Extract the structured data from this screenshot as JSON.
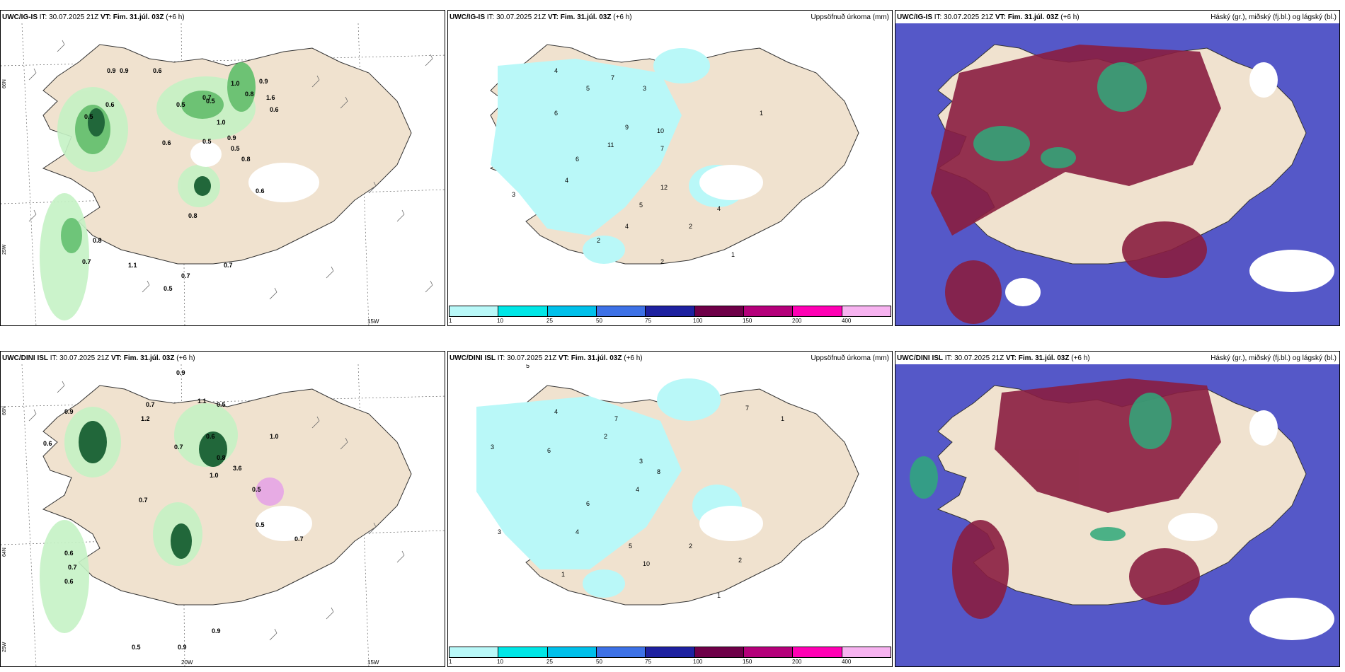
{
  "panels": {
    "p1": {
      "model": "UWC/IG-IS",
      "it_label": "IT:",
      "it": "30.07.2025 21Z",
      "vt_label": "VT:",
      "vt": "Fim. 31.júl. 03Z",
      "lead": "(+6 h)",
      "right": ""
    },
    "p2": {
      "model": "UWC/IG-IS",
      "it_label": "IT:",
      "it": "30.07.2025 21Z",
      "vt_label": "VT:",
      "vt": "Fim. 31.júl. 03Z",
      "lead": "(+6 h)",
      "right": "Uppsöfnuð úrkoma (mm)"
    },
    "p3": {
      "model": "UWC/IG-IS",
      "it_label": "IT:",
      "it": "30.07.2025 21Z",
      "vt_label": "VT:",
      "vt": "Fim. 31.júl. 03Z",
      "lead": "(+6 h)",
      "right": "Háský (gr.), miðský (fj.bl.) og lágský (bl.)"
    },
    "p4": {
      "model": "UWC/DINI ISL",
      "it_label": "IT:",
      "it": "30.07.2025 21Z",
      "vt_label": "VT:",
      "vt": "Fim. 31.júl. 03Z",
      "lead": "(+6 h)",
      "right": ""
    },
    "p5": {
      "model": "UWC/DINI ISL",
      "it_label": "IT:",
      "it": "30.07.2025 21Z",
      "vt_label": "VT:",
      "vt": "Fim. 31.júl. 03Z",
      "lead": "(+6 h)",
      "right": "Uppsöfnuð úrkoma (mm)"
    },
    "p6": {
      "model": "UWC/DINI ISL",
      "it_label": "IT:",
      "it": "30.07.2025 21Z",
      "vt_label": "VT:",
      "vt": "Fim. 31.júl. 03Z",
      "lead": "(+6 h)",
      "right": "Háský (gr.), miðský (fj.bl.) og lágský (bl.)"
    }
  },
  "colorbar": {
    "colors": [
      "#b9f8f8",
      "#00e6e6",
      "#00c0ea",
      "#3d71e6",
      "#1e21a0",
      "#6e0048",
      "#b4007a",
      "#ff00b4",
      "#f7b3f0"
    ],
    "labels": [
      "1",
      "10",
      "25",
      "50",
      "75",
      "100",
      "150",
      "200",
      "400"
    ]
  },
  "axis": {
    "lat_n66": "66N",
    "lat_n64": "64N",
    "lon_25w": "25W",
    "lon_20w": "20W",
    "lon_15w": "15W"
  },
  "map_colors": {
    "land": "#f0e2cf",
    "precip_light": "#b9f8f8",
    "green_light": "#c5f2c5",
    "green_mid": "#5fbf6b",
    "green_dark": "#0b5a2a",
    "high_cloud": "#5c2a6a",
    "mid_cloud": "#8a1e40",
    "low_cloud": "#5558c8"
  },
  "p1_values": [
    "0.9",
    "0.9",
    "0.6",
    "0.9",
    "0.5",
    "0.6",
    "0.5",
    "0.7",
    "0.5",
    "1.0",
    "0.8",
    "1.6",
    "0.6",
    "0.9",
    "1.0",
    "0.5",
    "0.8",
    "0.6",
    "0.8",
    "0.8",
    "0.7",
    "0.6",
    "0.5",
    "0.7",
    "0.5",
    "1.1",
    "0.7"
  ],
  "p4_values": [
    "0.9",
    "0.7",
    "1.1",
    "0.5",
    "0.9",
    "0.6",
    "1.2",
    "0.7",
    "1.0",
    "0.6",
    "0.8",
    "3.6",
    "1.0",
    "0.7",
    "0.6",
    "0.5",
    "0.7",
    "0.6",
    "0.5",
    "0.7",
    "0.9",
    "0.5",
    "0.9"
  ],
  "p2_values": [
    "4",
    "5",
    "7",
    "3",
    "6",
    "11",
    "4",
    "7",
    "9",
    "10",
    "6",
    "12",
    "5",
    "4",
    "2",
    "3",
    "4",
    "2",
    "1",
    "2",
    "1"
  ],
  "p5_values": [
    "5",
    "3",
    "4",
    "6",
    "7",
    "2",
    "4",
    "8",
    "3",
    "5",
    "6",
    "10",
    "2",
    "3",
    "4",
    "1",
    "2",
    "1",
    "7",
    "1"
  ]
}
